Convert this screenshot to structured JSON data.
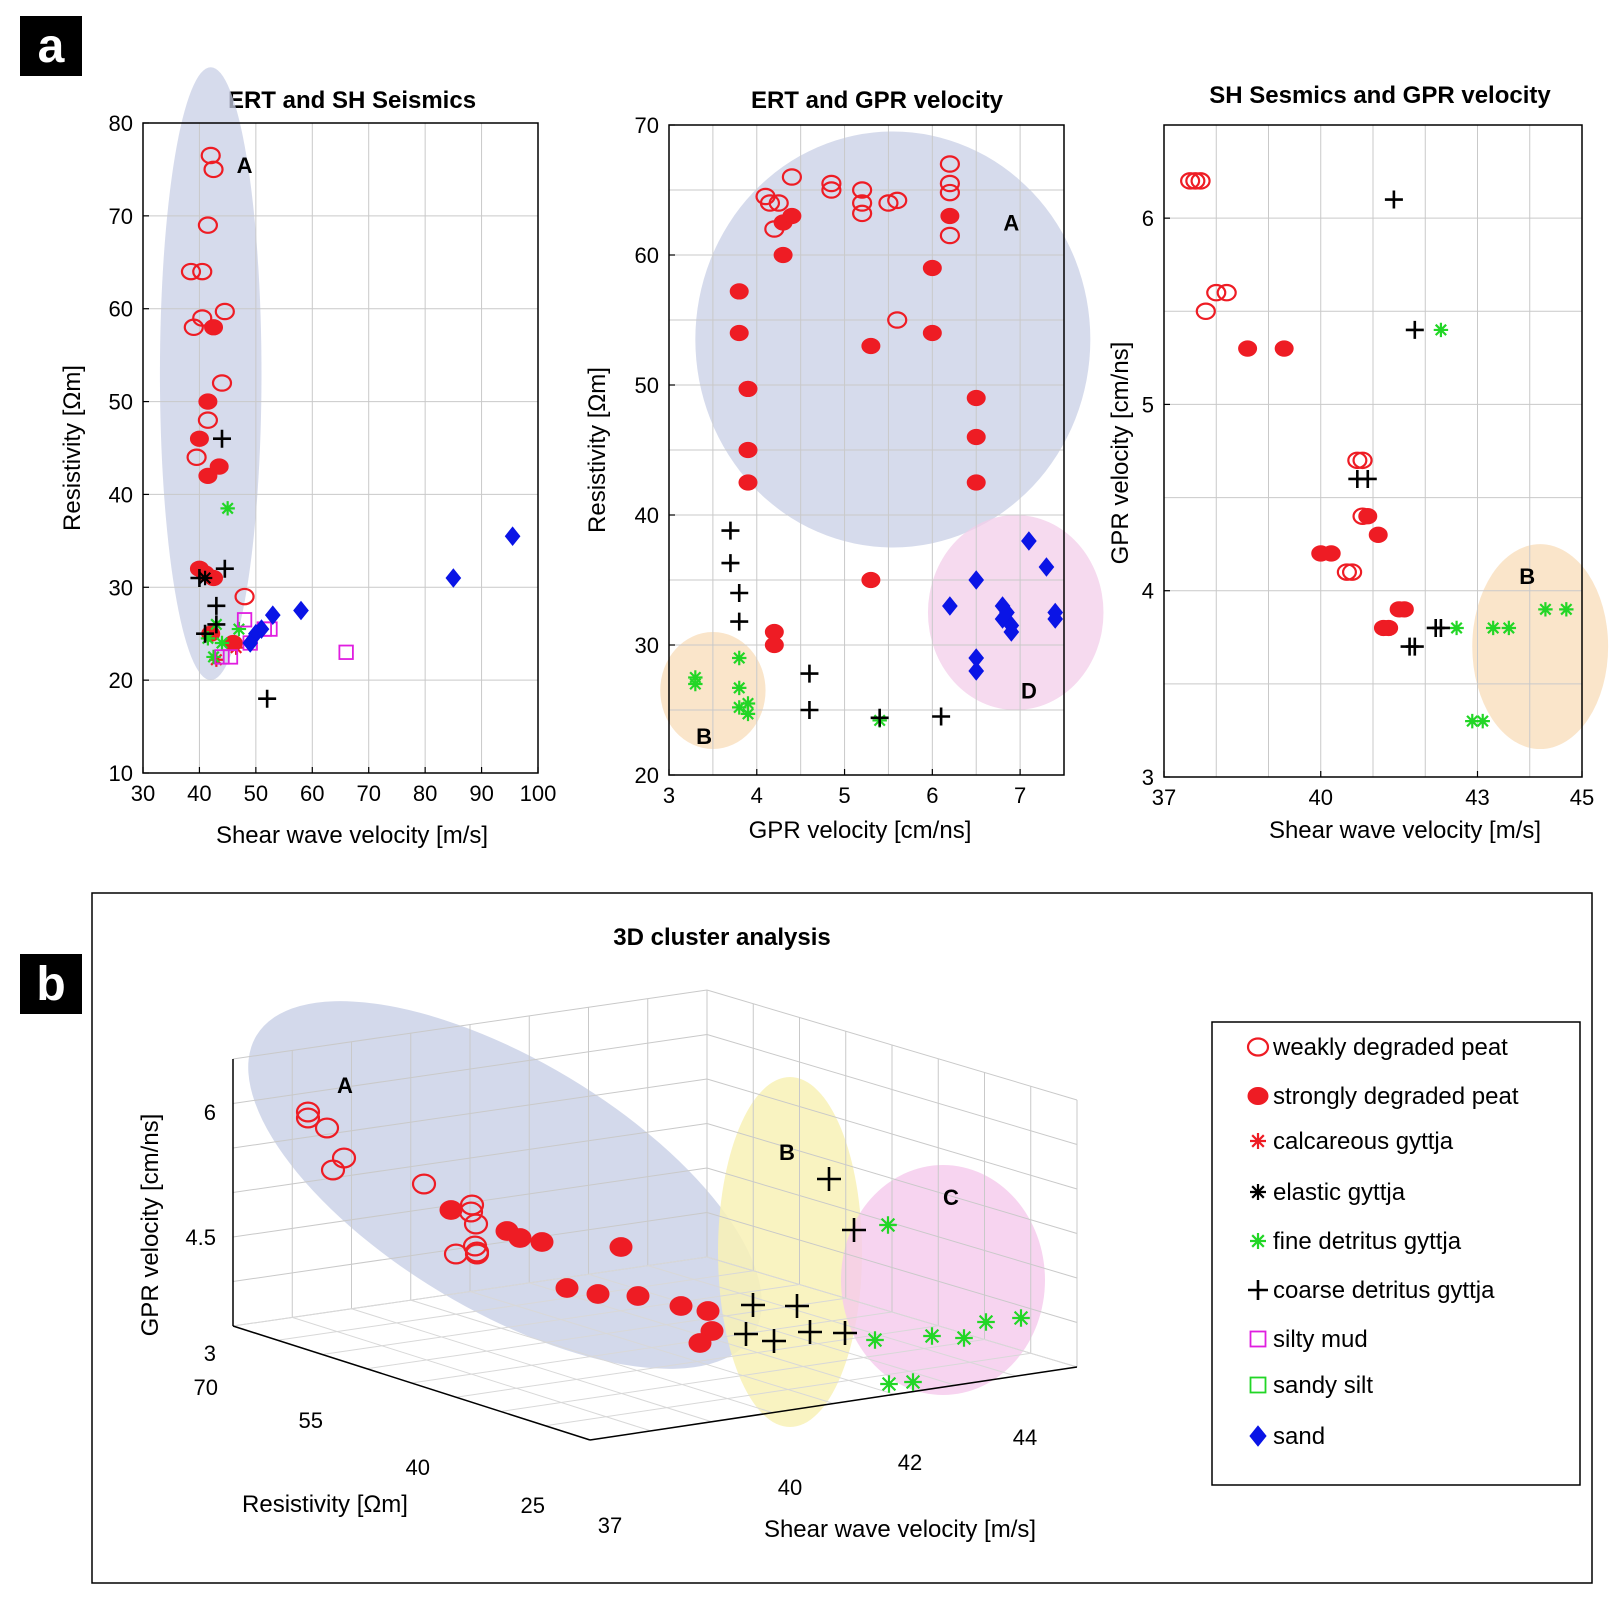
{
  "panel_labels": {
    "a": "a",
    "b": "b"
  },
  "chart_data": [
    {
      "type": "scatter",
      "title": "ERT and SH Seismics",
      "xlabel": "Shear wave velocity [m/s]",
      "ylabel": "Resistivity [Ωm]",
      "xlim": [
        30,
        100
      ],
      "ylim": [
        10,
        80
      ],
      "xticks": [
        "30",
        "40",
        "50",
        "60",
        "70",
        "80",
        "90",
        "100"
      ],
      "yticks": [
        "10",
        "20",
        "30",
        "40",
        "50",
        "60",
        "70",
        "80"
      ],
      "grid": true,
      "clusters": [
        {
          "label": "A",
          "color": "#c8cfe6",
          "cx": 42,
          "cy": 53,
          "rx": 9,
          "ry": 33
        }
      ],
      "cluster_labels": [
        {
          "text": "A",
          "x": 48,
          "y": 75.5
        }
      ],
      "series": [
        {
          "name": "weakly degraded peat",
          "marker": "open-circle",
          "color": "#ee1c24",
          "points": [
            [
              42,
              76.5
            ],
            [
              42.5,
              75
            ],
            [
              41.5,
              69
            ],
            [
              38.5,
              64
            ],
            [
              40.5,
              64
            ],
            [
              40.5,
              59
            ],
            [
              39,
              58
            ],
            [
              44.5,
              59.7
            ],
            [
              44,
              52
            ],
            [
              41.5,
              48
            ],
            [
              39.5,
              44
            ],
            [
              48,
              29
            ]
          ]
        },
        {
          "name": "strongly degraded peat",
          "marker": "filled-circle",
          "color": "#ee1c24",
          "points": [
            [
              42.5,
              58
            ],
            [
              41.5,
              50
            ],
            [
              40,
              46
            ],
            [
              41.5,
              42
            ],
            [
              43.5,
              43
            ],
            [
              40,
              32
            ],
            [
              41,
              31.5
            ],
            [
              42.5,
              31
            ],
            [
              46,
              24
            ],
            [
              42,
              25
            ]
          ]
        },
        {
          "name": "calcareous gyttja",
          "marker": "asterisk",
          "color": "#ee1c24",
          "points": [
            [
              43,
              22.2
            ],
            [
              46.5,
              23.5
            ]
          ]
        },
        {
          "name": "elastic gyttja",
          "marker": "asterisk",
          "color": "#000000",
          "points": [
            [
              41,
              31
            ]
          ]
        },
        {
          "name": "fine detritus gyttja",
          "marker": "asterisk",
          "color": "#22d626",
          "points": [
            [
              45,
              38.5
            ],
            [
              43,
              26
            ],
            [
              41.5,
              24.5
            ],
            [
              42.5,
              22.5
            ],
            [
              47,
              25.5
            ],
            [
              44,
              24
            ]
          ]
        },
        {
          "name": "coarse detritus gyttja",
          "marker": "plus",
          "color": "#000000",
          "points": [
            [
              44,
              46
            ],
            [
              44.5,
              32
            ],
            [
              40,
              31
            ],
            [
              43,
              28
            ],
            [
              41,
              25
            ],
            [
              52,
              18
            ],
            [
              43,
              26
            ]
          ]
        },
        {
          "name": "silty mud",
          "marker": "open-square",
          "color": "#e01ee0",
          "points": [
            [
              66,
              23
            ],
            [
              48,
              26.5
            ],
            [
              51.5,
              25.5
            ],
            [
              45.5,
              22.5
            ],
            [
              44,
              22.5
            ],
            [
              49,
              24
            ],
            [
              52.5,
              25.5
            ]
          ]
        },
        {
          "name": "sand",
          "marker": "diamond",
          "color": "#0a14e6",
          "points": [
            [
              95.5,
              35.5
            ],
            [
              85,
              31
            ],
            [
              58,
              27.5
            ],
            [
              53,
              27
            ],
            [
              51,
              25.5
            ],
            [
              50,
              25
            ],
            [
              49,
              24
            ]
          ]
        }
      ]
    },
    {
      "type": "scatter",
      "title": "ERT and GPR velocity",
      "xlabel": "GPR velocity [cm/ns]",
      "ylabel": "Resistivity [Ωm]",
      "xlim": [
        3,
        7.5
      ],
      "ylim": [
        20,
        70
      ],
      "xticks": [
        "3",
        "4",
        "5",
        "6",
        "7"
      ],
      "yticks": [
        "20",
        "30",
        "40",
        "50",
        "60",
        "70"
      ],
      "grid": true,
      "clusters": [
        {
          "label": "A",
          "color": "#c8cfe6",
          "cx": 5.55,
          "cy": 53.5,
          "rx": 2.25,
          "ry": 16
        },
        {
          "label": "D",
          "color": "#f3cdea",
          "cx": 6.95,
          "cy": 32.5,
          "rx": 1.0,
          "ry": 7.5
        },
        {
          "label": "B",
          "color": "#f8dcb8",
          "cx": 3.5,
          "cy": 26.5,
          "rx": 0.6,
          "ry": 4.5
        }
      ],
      "cluster_labels": [
        {
          "text": "A",
          "x": 6.9,
          "y": 62.5
        },
        {
          "text": "D",
          "x": 7.1,
          "y": 26.5
        },
        {
          "text": "B",
          "x": 3.4,
          "y": 23
        }
      ],
      "series": [
        {
          "name": "weakly degraded peat",
          "marker": "open-circle",
          "color": "#ee1c24",
          "points": [
            [
              4.1,
              64.5
            ],
            [
              4.15,
              64
            ],
            [
              4.25,
              64
            ],
            [
              4.4,
              66
            ],
            [
              4.2,
              62
            ],
            [
              4.85,
              65.5
            ],
            [
              4.85,
              65
            ],
            [
              5.2,
              65
            ],
            [
              5.2,
              64
            ],
            [
              5.2,
              63.2
            ],
            [
              5.5,
              64
            ],
            [
              5.6,
              64.2
            ],
            [
              5.6,
              55
            ],
            [
              6.2,
              67
            ],
            [
              6.2,
              65.5
            ],
            [
              6.2,
              64.8
            ],
            [
              6.2,
              61.5
            ]
          ]
        },
        {
          "name": "strongly degraded peat",
          "marker": "filled-circle",
          "color": "#ee1c24",
          "points": [
            [
              4.3,
              62.5
            ],
            [
              4.4,
              63
            ],
            [
              4.3,
              60
            ],
            [
              3.8,
              57.2
            ],
            [
              3.8,
              54
            ],
            [
              3.9,
              49.7
            ],
            [
              3.9,
              45
            ],
            [
              3.9,
              42.5
            ],
            [
              6.0,
              59
            ],
            [
              6.0,
              54
            ],
            [
              6.2,
              63
            ],
            [
              5.3,
              53
            ],
            [
              6.5,
              49
            ],
            [
              6.5,
              46
            ],
            [
              6.5,
              42.5
            ],
            [
              5.3,
              35
            ],
            [
              4.2,
              31
            ],
            [
              4.2,
              30
            ]
          ]
        },
        {
          "name": "fine detritus gyttja",
          "marker": "asterisk",
          "color": "#22d626",
          "points": [
            [
              3.3,
              27.5
            ],
            [
              3.3,
              27
            ],
            [
              3.8,
              29
            ],
            [
              3.8,
              26.7
            ],
            [
              3.8,
              25.2
            ],
            [
              3.9,
              25.5
            ],
            [
              3.9,
              24.7
            ],
            [
              5.4,
              24.2
            ]
          ]
        },
        {
          "name": "coarse detritus gyttja",
          "marker": "plus",
          "color": "#000000",
          "points": [
            [
              3.7,
              38.8
            ],
            [
              3.7,
              36.3
            ],
            [
              3.8,
              34
            ],
            [
              3.8,
              31.8
            ],
            [
              4.6,
              27.8
            ],
            [
              4.6,
              25
            ],
            [
              5.4,
              24.4
            ],
            [
              6.1,
              24.5
            ]
          ]
        },
        {
          "name": "sand",
          "marker": "diamond",
          "color": "#0a14e6",
          "points": [
            [
              7.1,
              38
            ],
            [
              7.3,
              36
            ],
            [
              6.5,
              35
            ],
            [
              6.2,
              33
            ],
            [
              6.8,
              33
            ],
            [
              6.85,
              32.5
            ],
            [
              6.8,
              32
            ],
            [
              6.9,
              31.5
            ],
            [
              6.9,
              31
            ],
            [
              7.4,
              32.5
            ],
            [
              7.4,
              32
            ],
            [
              6.5,
              29
            ],
            [
              6.5,
              28
            ]
          ]
        }
      ]
    },
    {
      "type": "scatter",
      "title": "SH Sesmics and GPR velocity",
      "xlabel": "Shear wave velocity [m/s]",
      "ylabel": "GPR velocity [cm/ns]",
      "xlim": [
        37,
        45
      ],
      "ylim": [
        3,
        6.5
      ],
      "xticks": [
        "37",
        "40",
        "43",
        "45"
      ],
      "yticks": [
        "3",
        "4",
        "5",
        "6"
      ],
      "grid": true,
      "clusters": [
        {
          "label": "B",
          "color": "#f8dcb8",
          "cx": 44.2,
          "cy": 3.7,
          "rx": 1.3,
          "ry": 0.55
        }
      ],
      "cluster_labels": [
        {
          "text": "B",
          "x": 43.95,
          "y": 4.08
        }
      ],
      "series": [
        {
          "name": "weakly degraded peat",
          "marker": "open-circle",
          "color": "#ee1c24",
          "points": [
            [
              37.5,
              6.2
            ],
            [
              37.6,
              6.2
            ],
            [
              37.7,
              6.2
            ],
            [
              38.0,
              5.6
            ],
            [
              38.2,
              5.6
            ],
            [
              37.8,
              5.5
            ],
            [
              40.7,
              4.7
            ],
            [
              40.8,
              4.7
            ],
            [
              40.8,
              4.4
            ],
            [
              40.5,
              4.1
            ],
            [
              40.6,
              4.1
            ]
          ]
        },
        {
          "name": "strongly degraded peat",
          "marker": "filled-circle",
          "color": "#ee1c24",
          "points": [
            [
              38.6,
              5.3
            ],
            [
              39.3,
              5.3
            ],
            [
              40.9,
              4.4
            ],
            [
              40.0,
              4.2
            ],
            [
              40.2,
              4.2
            ],
            [
              41.1,
              4.3
            ],
            [
              41.5,
              3.9
            ],
            [
              41.6,
              3.9
            ],
            [
              41.2,
              3.8
            ],
            [
              41.3,
              3.8
            ]
          ]
        },
        {
          "name": "fine detritus gyttja",
          "marker": "asterisk",
          "color": "#22d626",
          "points": [
            [
              42.3,
              5.4
            ],
            [
              42.6,
              3.8
            ],
            [
              43.3,
              3.8
            ],
            [
              43.6,
              3.8
            ],
            [
              44.3,
              3.9
            ],
            [
              44.7,
              3.9
            ],
            [
              42.9,
              3.3
            ],
            [
              43.1,
              3.3
            ]
          ]
        },
        {
          "name": "coarse detritus gyttja",
          "marker": "plus",
          "color": "#000000",
          "points": [
            [
              41.4,
              6.1
            ],
            [
              41.8,
              5.4
            ],
            [
              40.7,
              4.6
            ],
            [
              40.9,
              4.6
            ],
            [
              41.7,
              3.7
            ],
            [
              41.8,
              3.7
            ],
            [
              42.2,
              3.8
            ],
            [
              42.3,
              3.8
            ]
          ]
        }
      ]
    },
    {
      "type": "scatter3d",
      "title": "3D cluster analysis",
      "xlabel": "Shear wave velocity [m/s]",
      "ylabel": "Resistivity [Ωm]",
      "zlabel": "GPR velocity [cm/ns]",
      "xticks": [
        "37",
        "40",
        "42",
        "44"
      ],
      "yticks": [
        "70",
        "55",
        "40",
        "25"
      ],
      "zticks": [
        "3",
        "4.5",
        "6"
      ],
      "grid": true,
      "clusters": [
        {
          "label": "A",
          "color": "#c8cfe6"
        },
        {
          "label": "B",
          "color": "#f8f1b6"
        },
        {
          "label": "C",
          "color": "#f5c9ec"
        }
      ],
      "legend": {
        "position": "right",
        "entries": [
          {
            "name": "weakly degraded peat",
            "marker": "open-circle",
            "color": "#ee1c24"
          },
          {
            "name": "strongly degraded peat",
            "marker": "filled-circle",
            "color": "#ee1c24"
          },
          {
            "name": "calcareous gyttja",
            "marker": "asterisk",
            "color": "#ee1c24"
          },
          {
            "name": "elastic gyttja",
            "marker": "asterisk",
            "color": "#000000"
          },
          {
            "name": "fine detritus gyttja",
            "marker": "asterisk",
            "color": "#22d626"
          },
          {
            "name": "coarse detritus gyttja",
            "marker": "plus",
            "color": "#000000"
          },
          {
            "name": "silty mud",
            "marker": "open-square",
            "color": "#e01ee0"
          },
          {
            "name": "sandy silt",
            "marker": "open-square",
            "color": "#22d626"
          },
          {
            "name": "sand",
            "marker": "diamond",
            "color": "#0a14e6"
          }
        ]
      }
    }
  ]
}
